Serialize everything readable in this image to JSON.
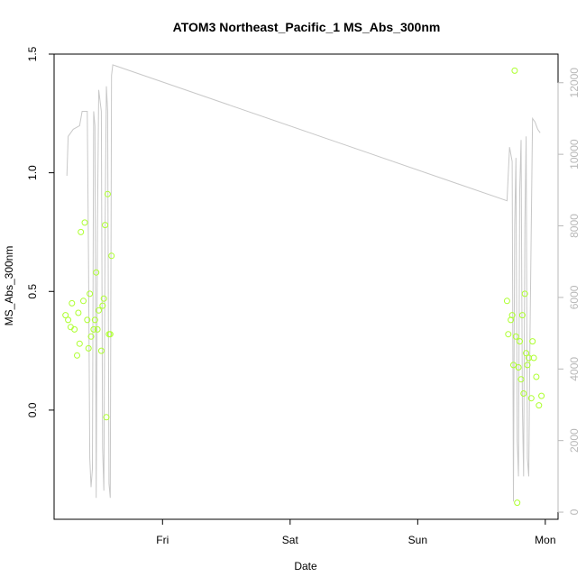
{
  "chart_data": {
    "type": "scatter",
    "title": "ATOM3 Northeast_Pacific_1 MS_Abs_300nm",
    "xlabel": "Date",
    "ylabel": "MS_Abs_300nm",
    "x_ticks": [
      "Fri",
      "Sat",
      "Sun",
      "Mon"
    ],
    "xlim": [
      -0.85,
      3.1
    ],
    "ylim": [
      -0.46,
      1.5
    ],
    "y_ticks": [
      "0.0",
      "0.5",
      "1.0",
      "1.5"
    ],
    "y_tick_values": [
      0.0,
      0.5,
      1.0,
      1.5
    ],
    "y2lim": [
      -200,
      12800
    ],
    "y2_ticks": [
      "0",
      "2000",
      "4000",
      "6000",
      "8000",
      "10000",
      "12000"
    ],
    "y2_tick_values": [
      0,
      2000,
      4000,
      6000,
      8000,
      10000,
      12000
    ],
    "colors": {
      "points": "#adff2f",
      "line": "#c8c8c8",
      "right_axis": "#b8b8b8"
    },
    "series": [
      {
        "axis": "left",
        "style": "open-circle",
        "points": [
          [
            -0.76,
            0.4
          ],
          [
            -0.74,
            0.38
          ],
          [
            -0.72,
            0.35
          ],
          [
            -0.71,
            0.45
          ],
          [
            -0.69,
            0.34
          ],
          [
            -0.67,
            0.23
          ],
          [
            -0.66,
            0.41
          ],
          [
            -0.65,
            0.28
          ],
          [
            -0.64,
            0.75
          ],
          [
            -0.62,
            0.46
          ],
          [
            -0.61,
            0.79
          ],
          [
            -0.59,
            0.38
          ],
          [
            -0.58,
            0.26
          ],
          [
            -0.57,
            0.49
          ],
          [
            -0.56,
            0.31
          ],
          [
            -0.54,
            0.34
          ],
          [
            -0.53,
            0.38
          ],
          [
            -0.52,
            0.58
          ],
          [
            -0.51,
            0.34
          ],
          [
            -0.5,
            0.42
          ],
          [
            -0.48,
            0.25
          ],
          [
            -0.47,
            0.44
          ],
          [
            -0.46,
            0.47
          ],
          [
            -0.45,
            0.78
          ],
          [
            -0.44,
            -0.03
          ],
          [
            -0.43,
            0.91
          ],
          [
            -0.42,
            0.32
          ],
          [
            -0.41,
            0.32
          ],
          [
            -0.4,
            0.65
          ],
          [
            2.7,
            0.46
          ],
          [
            2.71,
            0.32
          ],
          [
            2.73,
            0.38
          ],
          [
            2.74,
            0.4
          ],
          [
            2.75,
            0.19
          ],
          [
            2.76,
            1.43
          ],
          [
            2.77,
            0.31
          ],
          [
            2.78,
            -0.39
          ],
          [
            2.79,
            0.18
          ],
          [
            2.8,
            0.29
          ],
          [
            2.81,
            0.13
          ],
          [
            2.82,
            0.4
          ],
          [
            2.83,
            0.07
          ],
          [
            2.84,
            0.49
          ],
          [
            2.85,
            0.24
          ],
          [
            2.86,
            0.19
          ],
          [
            2.87,
            0.22
          ],
          [
            2.89,
            0.05
          ],
          [
            2.9,
            0.29
          ],
          [
            2.91,
            0.22
          ],
          [
            2.93,
            0.14
          ],
          [
            2.95,
            0.02
          ],
          [
            2.97,
            0.06
          ]
        ]
      },
      {
        "axis": "right",
        "style": "line",
        "points": [
          [
            -0.75,
            9400
          ],
          [
            -0.74,
            10500
          ],
          [
            -0.7,
            10700
          ],
          [
            -0.65,
            10800
          ],
          [
            -0.63,
            11200
          ],
          [
            -0.59,
            11200
          ],
          [
            -0.58,
            7000
          ],
          [
            -0.57,
            1500
          ],
          [
            -0.56,
            700
          ],
          [
            -0.55,
            1200
          ],
          [
            -0.54,
            11200
          ],
          [
            -0.53,
            10800
          ],
          [
            -0.52,
            400
          ],
          [
            -0.51,
            8000
          ],
          [
            -0.5,
            11800
          ],
          [
            -0.48,
            11200
          ],
          [
            -0.47,
            1800
          ],
          [
            -0.46,
            600
          ],
          [
            -0.45,
            8000
          ],
          [
            -0.44,
            11900
          ],
          [
            -0.43,
            11200
          ],
          [
            -0.42,
            800
          ],
          [
            -0.41,
            400
          ],
          [
            -0.4,
            12200
          ],
          [
            -0.39,
            12500
          ],
          [
            2.7,
            8700
          ],
          [
            2.72,
            10200
          ],
          [
            2.74,
            9800
          ],
          [
            2.75,
            300
          ],
          [
            2.76,
            8000
          ],
          [
            2.77,
            9900
          ],
          [
            2.78,
            2000
          ],
          [
            2.79,
            1000
          ],
          [
            2.8,
            9000
          ],
          [
            2.81,
            10400
          ],
          [
            2.82,
            3000
          ],
          [
            2.83,
            1000
          ],
          [
            2.84,
            8000
          ],
          [
            2.85,
            10500
          ],
          [
            2.86,
            1500
          ],
          [
            2.87,
            1000
          ],
          [
            2.88,
            5000
          ],
          [
            2.9,
            11000
          ],
          [
            2.92,
            10900
          ],
          [
            2.94,
            10700
          ],
          [
            2.96,
            10600
          ]
        ]
      }
    ]
  }
}
